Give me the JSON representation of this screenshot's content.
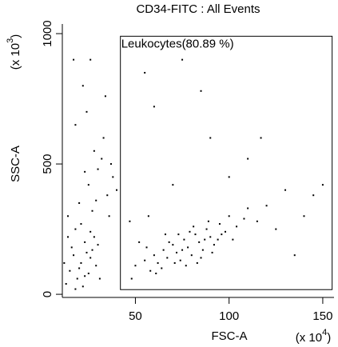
{
  "chart_data": {
    "type": "scatter",
    "title": "CD34-FITC : All Events",
    "x_label": "FSC-A",
    "y_label": "SSC-A",
    "x_multiplier": {
      "base": "(x 10",
      "exponent": "4",
      "close": ")"
    },
    "y_multiplier": {
      "base": "(x 10",
      "exponent": "3",
      "close": ")"
    },
    "xlim": [
      11,
      156
    ],
    "ylim": [
      -12,
      1037
    ],
    "xticks": [
      50,
      100,
      150
    ],
    "yticks": [
      0,
      500,
      1000
    ],
    "color": "#000000",
    "gate": {
      "label": "Leukocytes(80.89 %)",
      "x": [
        42,
        155
      ],
      "y": [
        18,
        990
      ]
    },
    "x": [
      13,
      15,
      17,
      19,
      21,
      23,
      25,
      27,
      14,
      18,
      22,
      26,
      29,
      31,
      16,
      20,
      24,
      28,
      12,
      30,
      18,
      23,
      26,
      14,
      21,
      18,
      22,
      25,
      28,
      30,
      33,
      35,
      38,
      20,
      24,
      27,
      32,
      36,
      40,
      17,
      26,
      34,
      29,
      37,
      23,
      50,
      55,
      58,
      60,
      62,
      65,
      67,
      70,
      72,
      74,
      76,
      78,
      80,
      82,
      84,
      86,
      88,
      90,
      92,
      95,
      98,
      64,
      68,
      73,
      77,
      81,
      85,
      89,
      94,
      100,
      104,
      108,
      56,
      61,
      66,
      71,
      75,
      79,
      83,
      87,
      91,
      96,
      102,
      110,
      115,
      47,
      52,
      57,
      120,
      125,
      60,
      75,
      90,
      110,
      130,
      140,
      100,
      55,
      48,
      145,
      70,
      85,
      135,
      150,
      117
    ],
    "y": [
      40,
      90,
      150,
      60,
      120,
      200,
      80,
      170,
      220,
      250,
      30,
      140,
      110,
      60,
      180,
      100,
      160,
      220,
      120,
      190,
      20,
      70,
      240,
      300,
      270,
      650,
      800,
      420,
      550,
      480,
      600,
      380,
      450,
      350,
      700,
      320,
      520,
      300,
      400,
      900,
      900,
      760,
      360,
      500,
      470,
      110,
      130,
      90,
      150,
      120,
      170,
      140,
      190,
      160,
      130,
      210,
      180,
      150,
      230,
      200,
      170,
      250,
      220,
      190,
      270,
      240,
      100,
      200,
      230,
      110,
      260,
      140,
      280,
      210,
      300,
      260,
      290,
      180,
      80,
      230,
      120,
      170,
      240,
      120,
      210,
      160,
      230,
      210,
      330,
      280,
      280,
      200,
      300,
      340,
      250,
      720,
      900,
      600,
      520,
      400,
      300,
      450,
      850,
      60,
      380,
      420,
      780,
      150,
      420,
      600
    ]
  }
}
